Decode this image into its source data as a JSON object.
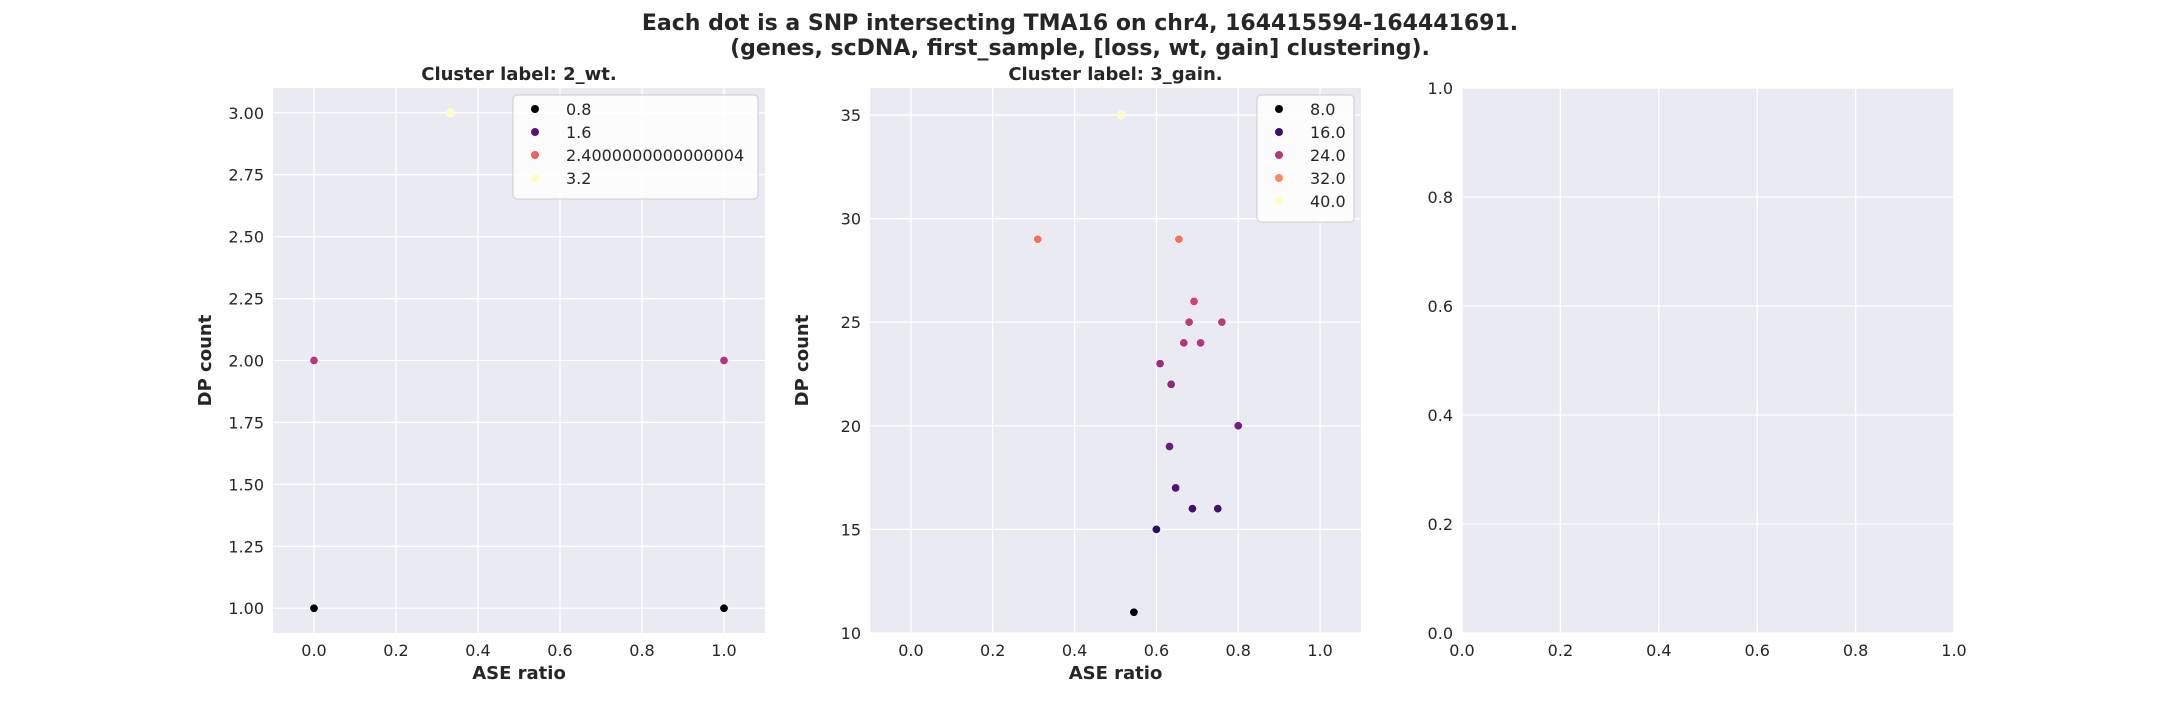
{
  "figure": {
    "title_lines": [
      "Each dot is a SNP intersecting TMA16 on chr4, 164415594-164441691.",
      "(genes, scDNA, first_sample, [loss, wt, gain] clustering)."
    ],
    "background": "#ffffff",
    "axes_background": "#eaeaf2",
    "grid_color": "#ffffff"
  },
  "chart_data": [
    {
      "type": "scatter",
      "title": "Cluster label: 2_wt.",
      "xlabel": "ASE ratio",
      "ylabel": "DP count",
      "xlim": [
        -0.1,
        1.1
      ],
      "ylim": [
        0.9,
        3.1
      ],
      "xticks": [
        "0.0",
        "0.2",
        "0.4",
        "0.6",
        "0.8",
        "1.0"
      ],
      "yticks": [
        "1.00",
        "1.25",
        "1.50",
        "1.75",
        "2.00",
        "2.25",
        "2.50",
        "2.75",
        "3.00"
      ],
      "grid": true,
      "legend": {
        "placement": "top-right",
        "entries": [
          {
            "label": "0.8",
            "color": "#000004"
          },
          {
            "label": "1.6",
            "color": "#5c126e"
          },
          {
            "label": "2.4000000000000004",
            "color": "#f1605d"
          },
          {
            "label": "3.2",
            "color": "#fcfdbf"
          }
        ]
      },
      "points": [
        {
          "x": 0.0,
          "y": 1,
          "color": "#000004"
        },
        {
          "x": 1.0,
          "y": 1,
          "color": "#000004"
        },
        {
          "x": 0.0,
          "y": 2,
          "color": "#b5367a"
        },
        {
          "x": 1.0,
          "y": 2,
          "color": "#b5367a"
        },
        {
          "x": 0.333,
          "y": 3,
          "color": "#fcfdbf"
        }
      ]
    },
    {
      "type": "scatter",
      "title": "Cluster label: 3_gain.",
      "xlabel": "ASE ratio",
      "ylabel": "DP count",
      "xlim": [
        -0.1,
        1.1
      ],
      "ylim": [
        10,
        36.3
      ],
      "xticks": [
        "0.0",
        "0.2",
        "0.4",
        "0.6",
        "0.8",
        "1.0"
      ],
      "yticks": [
        "10",
        "15",
        "20",
        "25",
        "30",
        "35"
      ],
      "grid": true,
      "legend": {
        "placement": "top-right",
        "entries": [
          {
            "label": "8.0",
            "color": "#000004"
          },
          {
            "label": "16.0",
            "color": "#3b0f70"
          },
          {
            "label": "24.0",
            "color": "#b73779"
          },
          {
            "label": "32.0",
            "color": "#fc8961"
          },
          {
            "label": "40.0",
            "color": "#fcfdbf"
          }
        ]
      },
      "points": [
        {
          "x": 0.545,
          "y": 11,
          "color": "#000004"
        },
        {
          "x": 0.6,
          "y": 15,
          "color": "#2d1160"
        },
        {
          "x": 0.688,
          "y": 16,
          "color": "#3f0f72"
        },
        {
          "x": 0.75,
          "y": 16,
          "color": "#3f0f72"
        },
        {
          "x": 0.647,
          "y": 17,
          "color": "#51127c"
        },
        {
          "x": 0.632,
          "y": 19,
          "color": "#6a1c81"
        },
        {
          "x": 0.8,
          "y": 20,
          "color": "#721f81"
        },
        {
          "x": 0.636,
          "y": 22,
          "color": "#8c2981"
        },
        {
          "x": 0.609,
          "y": 23,
          "color": "#9b2e7f"
        },
        {
          "x": 0.667,
          "y": 24,
          "color": "#b5367a"
        },
        {
          "x": 0.708,
          "y": 24,
          "color": "#b5367a"
        },
        {
          "x": 0.68,
          "y": 25,
          "color": "#c03a76"
        },
        {
          "x": 0.76,
          "y": 25,
          "color": "#c03a76"
        },
        {
          "x": 0.692,
          "y": 26,
          "color": "#d3436e"
        },
        {
          "x": 0.31,
          "y": 29,
          "color": "#f7705c"
        },
        {
          "x": 0.655,
          "y": 29,
          "color": "#f7705c"
        },
        {
          "x": 0.514,
          "y": 35,
          "color": "#fcfdbf"
        }
      ]
    },
    {
      "type": "scatter",
      "title": "",
      "xlabel": "",
      "ylabel": "",
      "xlim": [
        0,
        1
      ],
      "ylim": [
        0,
        1
      ],
      "xticks": [
        "0.0",
        "0.2",
        "0.4",
        "0.6",
        "0.8",
        "1.0"
      ],
      "yticks": [
        "0.0",
        "0.2",
        "0.4",
        "0.6",
        "0.8",
        "1.0"
      ],
      "grid": true,
      "points": []
    }
  ]
}
